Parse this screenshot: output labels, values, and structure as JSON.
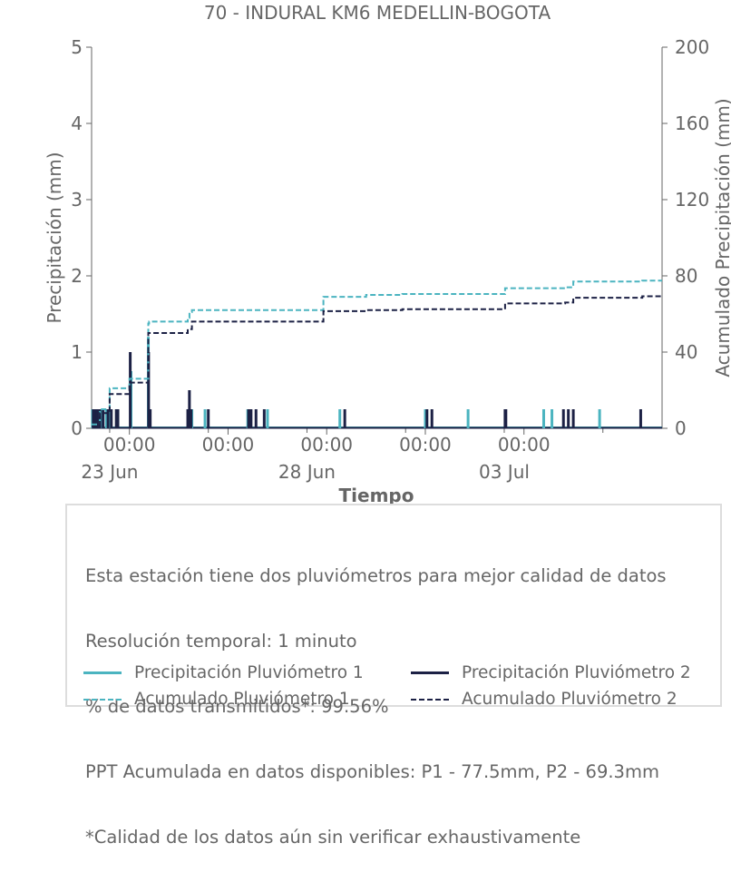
{
  "chart_data": {
    "type": "bar",
    "title": "70 - INDURAL KM6 MEDELLIN-BOGOTA",
    "xlabel": "Tiempo",
    "ylabel": "Precipitación (mm)",
    "y2label": "Acumulado Precipitación (mm)",
    "xlim": [
      "2023-06-22 13:00",
      "2023-07-07 00:00"
    ],
    "ylim": [
      0,
      5
    ],
    "y2lim": [
      0,
      200
    ],
    "yticks": [
      "0",
      "1",
      "2",
      "3",
      "4",
      "5"
    ],
    "y2ticks": [
      "0",
      "40",
      "80",
      "120",
      "160",
      "200"
    ],
    "xticks_time": [
      "00:00",
      "00:00",
      "00:00",
      "00:00",
      "00:00"
    ],
    "xticks_date": [
      "23 Jun",
      "28 Jun",
      "03 Jul"
    ],
    "grid": false,
    "colors": {
      "p1": "#4bb4c0",
      "p2": "#1c2145",
      "axis": "#666666"
    },
    "series": [
      {
        "name": "Precipitación Pluviómetro 1",
        "kind": "bars",
        "x": [
          "2023-06-22 13:30",
          "2023-06-22 16:00",
          "2023-06-22 19:00",
          "2023-06-22 22:00",
          "2023-06-23 00:00",
          "2023-06-23 13:00",
          "2023-06-23 23:30",
          "2023-06-24 00:30",
          "2023-06-25 00:00",
          "2023-06-25 02:00",
          "2023-06-25 10:00",
          "2023-06-26 12:00",
          "2023-06-27 00:00",
          "2023-06-28 20:00",
          "2023-07-01 00:00",
          "2023-07-02 02:00",
          "2023-07-04 00:00",
          "2023-07-04 05:00",
          "2023-07-05 10:00"
        ],
        "values": [
          0.25,
          0.25,
          0.25,
          0.25,
          0.25,
          0.75,
          1.2,
          0.25,
          0.25,
          0.25,
          0.25,
          0.25,
          0.25,
          0.25,
          0.25,
          0.25,
          0.25,
          0.25,
          0.25
        ]
      },
      {
        "name": "Precipitación Pluviómetro 2",
        "kind": "bars",
        "x": [
          "2023-06-22 14:00",
          "2023-06-22 15:00",
          "2023-06-22 16:30",
          "2023-06-22 18:00",
          "2023-06-22 20:00",
          "2023-06-22 23:00",
          "2023-06-23 01:00",
          "2023-06-23 04:00",
          "2023-06-23 05:00",
          "2023-06-23 12:30",
          "2023-06-23 23:40",
          "2023-06-24 00:40",
          "2023-06-24 23:30",
          "2023-06-25 00:30",
          "2023-06-25 01:30",
          "2023-06-25 12:00",
          "2023-06-26 12:30",
          "2023-06-26 14:00",
          "2023-06-26 17:00",
          "2023-06-26 22:00",
          "2023-06-28 23:00",
          "2023-07-01 01:00",
          "2023-07-01 04:00",
          "2023-07-03 00:30",
          "2023-07-03 01:00",
          "2023-07-04 12:00",
          "2023-07-04 15:00",
          "2023-07-04 18:00",
          "2023-07-06 11:00"
        ],
        "values": [
          0.25,
          0.25,
          0.25,
          0.25,
          0.25,
          0.25,
          0.25,
          0.25,
          0.25,
          1.0,
          1.0,
          0.25,
          0.25,
          0.5,
          0.25,
          0.25,
          0.25,
          0.25,
          0.25,
          0.25,
          0.25,
          0.25,
          0.25,
          0.25,
          0.25,
          0.25,
          0.25,
          0.25,
          0.25
        ]
      },
      {
        "name": "Acumulado Pluviómetro 1",
        "kind": "step",
        "x": [
          "2023-06-22 13:00",
          "2023-06-22 18:00",
          "2023-06-23 00:00",
          "2023-06-23 12:00",
          "2023-06-23 23:30",
          "2023-06-24 00:00",
          "2023-06-24 23:30",
          "2023-06-25 00:30",
          "2023-06-25 02:00",
          "2023-06-28 00:30",
          "2023-06-28 10:00",
          "2023-06-29 12:00",
          "2023-06-30 10:00",
          "2023-07-03 00:30",
          "2023-07-04 13:00",
          "2023-07-04 18:00",
          "2023-07-06 12:00",
          "2023-07-07 00:00"
        ],
        "values": [
          2,
          10,
          21,
          26,
          55,
          56,
          58,
          61,
          62,
          62,
          69,
          70,
          70.5,
          73.5,
          74,
          77,
          77.5,
          77.5
        ]
      },
      {
        "name": "Acumulado Pluviómetro 2",
        "kind": "step",
        "x": [
          "2023-06-22 13:00",
          "2023-06-22 18:00",
          "2023-06-23 00:00",
          "2023-06-23 12:00",
          "2023-06-23 23:30",
          "2023-06-24 23:30",
          "2023-06-25 02:00",
          "2023-06-28 00:30",
          "2023-06-28 10:00",
          "2023-06-29 12:00",
          "2023-06-30 10:00",
          "2023-07-03 00:30",
          "2023-07-04 13:00",
          "2023-07-04 18:00",
          "2023-07-06 12:00",
          "2023-07-07 00:00"
        ],
        "values": [
          1,
          8,
          18,
          24,
          50,
          52,
          56,
          56,
          61.5,
          62,
          62.5,
          65.5,
          66,
          68.5,
          69.3,
          69.3
        ]
      }
    ]
  },
  "info": {
    "lines": [
      "Esta estación tiene dos pluviómetros para mejor calidad de datos",
      "Resolución temporal: 1 minuto",
      "% de datos transmitidos*: 99.56%",
      "PPT Acumulada en datos disponibles: P1 - 77.5mm, P2 - 69.3mm",
      "*Calidad de los datos aún sin verificar exhaustivamente"
    ]
  },
  "legend": [
    {
      "label": "Precipitación Pluviómetro 1",
      "style": "solid",
      "color": "#4bb4c0"
    },
    {
      "label": "Precipitación Pluviómetro 2",
      "style": "solid",
      "color": "#1c2145"
    },
    {
      "label": "Acumulado Pluviómetro 1",
      "style": "dashed",
      "color": "#4bb4c0"
    },
    {
      "label": "Acumulado Pluviómetro 2",
      "style": "dashed",
      "color": "#1c2145"
    }
  ]
}
